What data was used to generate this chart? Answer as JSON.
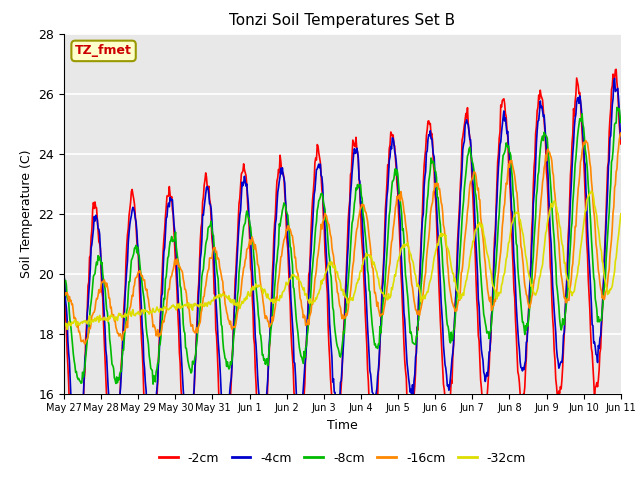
{
  "title": "Tonzi Soil Temperatures Set B",
  "xlabel": "Time",
  "ylabel": "Soil Temperature (C)",
  "ylim": [
    16,
    28
  ],
  "annotation_text": "TZ_fmet",
  "legend_labels": [
    "-2cm",
    "-4cm",
    "-8cm",
    "-16cm",
    "-32cm"
  ],
  "line_colors": [
    "#ff0000",
    "#0000cc",
    "#00bb00",
    "#ff8800",
    "#dddd00"
  ],
  "background_color": "#e8e8e8",
  "tick_labels": [
    "May 27",
    "May 28",
    "May 29",
    "May 30",
    "May 31",
    "Jun 1",
    "Jun 2",
    "Jun 3",
    "Jun 4",
    "Jun 5",
    "Jun 6",
    "Jun 7",
    "Jun 8",
    "Jun 9",
    "Jun 10",
    "Jun 11"
  ],
  "yticks": [
    16,
    18,
    20,
    22,
    24,
    26,
    28
  ],
  "n_days": 15,
  "pts_per_day": 48
}
